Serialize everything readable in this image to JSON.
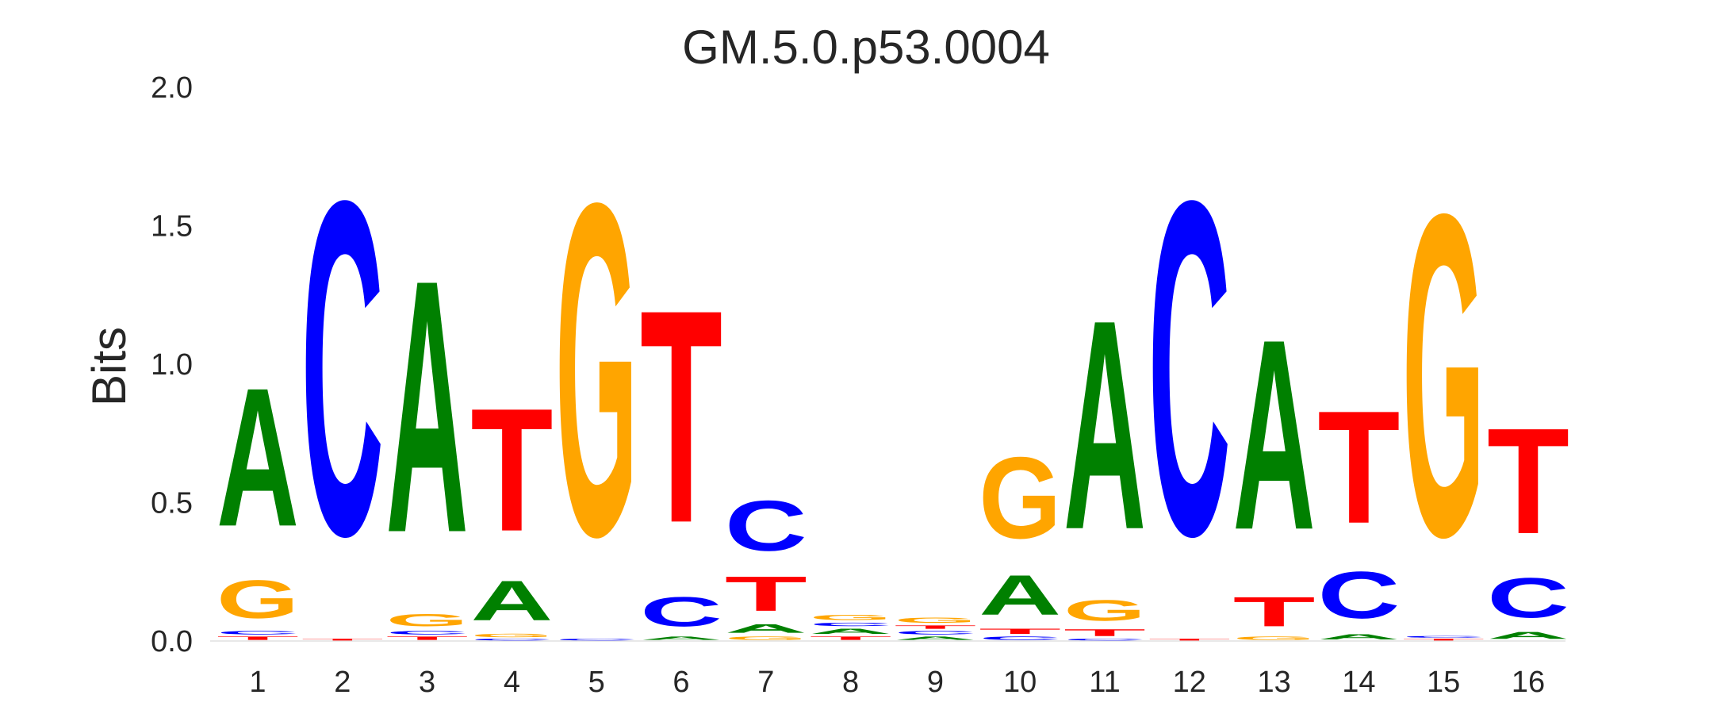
{
  "chart_data": {
    "type": "sequence-logo",
    "title": "GM.5.0.p53.0004",
    "xlabel": "",
    "ylabel": "Bits",
    "ylim": [
      0,
      2
    ],
    "yticks": [
      "0.0",
      "0.5",
      "1.0",
      "1.5",
      "2.0"
    ],
    "grid": false,
    "legend": "none",
    "colors": {
      "A": "#008000",
      "C": "#0000ff",
      "G": "#ffa500",
      "T": "#ff0000"
    },
    "positions": [
      {
        "label": "1",
        "stack": [
          [
            "T",
            0.02
          ],
          [
            "C",
            0.02
          ],
          [
            "G",
            0.22
          ],
          [
            "A",
            0.8
          ]
        ]
      },
      {
        "label": "2",
        "stack": [
          [
            "T",
            0.01
          ],
          [
            "C",
            1.93
          ]
        ]
      },
      {
        "label": "3",
        "stack": [
          [
            "T",
            0.02
          ],
          [
            "C",
            0.02
          ],
          [
            "G",
            0.07
          ],
          [
            "A",
            1.46
          ]
        ]
      },
      {
        "label": "4",
        "stack": [
          [
            "C",
            0.01
          ],
          [
            "G",
            0.02
          ],
          [
            "A",
            0.23
          ],
          [
            "T",
            0.71
          ]
        ]
      },
      {
        "label": "5",
        "stack": [
          [
            "C",
            0.01
          ],
          [
            "G",
            1.92
          ]
        ]
      },
      {
        "label": "6",
        "stack": [
          [
            "A",
            0.02
          ],
          [
            "C",
            0.17
          ],
          [
            "T",
            1.23
          ]
        ]
      },
      {
        "label": "7",
        "stack": [
          [
            "G",
            0.02
          ],
          [
            "A",
            0.05
          ],
          [
            "T",
            0.2
          ],
          [
            "C",
            0.29
          ]
        ]
      },
      {
        "label": "8",
        "stack": [
          [
            "T",
            0.02
          ],
          [
            "A",
            0.03
          ],
          [
            "C",
            0.02
          ],
          [
            "G",
            0.03
          ]
        ]
      },
      {
        "label": "9",
        "stack": [
          [
            "A",
            0.02
          ],
          [
            "C",
            0.02
          ],
          [
            "T",
            0.02
          ],
          [
            "G",
            0.03
          ]
        ]
      },
      {
        "label": "10",
        "stack": [
          [
            "C",
            0.02
          ],
          [
            "T",
            0.03
          ],
          [
            "A",
            0.23
          ],
          [
            "G",
            0.47
          ]
        ]
      },
      {
        "label": "11",
        "stack": [
          [
            "C",
            0.01
          ],
          [
            "T",
            0.04
          ],
          [
            "G",
            0.12
          ],
          [
            "A",
            1.21
          ]
        ]
      },
      {
        "label": "12",
        "stack": [
          [
            "T",
            0.01
          ],
          [
            "C",
            1.93
          ]
        ]
      },
      {
        "label": "13",
        "stack": [
          [
            "G",
            0.02
          ],
          [
            "T",
            0.17
          ],
          [
            "A",
            1.1
          ]
        ]
      },
      {
        "label": "14",
        "stack": [
          [
            "A",
            0.03
          ],
          [
            "C",
            0.27
          ],
          [
            "T",
            0.65
          ]
        ]
      },
      {
        "label": "15",
        "stack": [
          [
            "T",
            0.01
          ],
          [
            "C",
            0.01
          ],
          [
            "G",
            1.86
          ]
        ]
      },
      {
        "label": "16",
        "stack": [
          [
            "A",
            0.04
          ],
          [
            "C",
            0.23
          ],
          [
            "T",
            0.61
          ]
        ]
      }
    ]
  }
}
